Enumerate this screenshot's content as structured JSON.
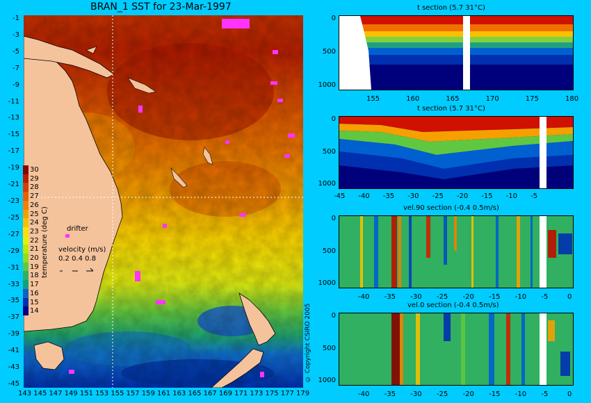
{
  "map": {
    "title": "BRAN_1 SST for 23-Mar-1997",
    "lat_labels": [
      "-1",
      "-3",
      "-5",
      "-7",
      "-9",
      "-11",
      "-13",
      "-15",
      "-17",
      "-19",
      "-21",
      "-23",
      "-25",
      "-27",
      "-29",
      "-31",
      "-33",
      "-35",
      "-37",
      "-39",
      "-41",
      "-43",
      "-45"
    ],
    "lon_labels": [
      "143",
      "145",
      "147",
      "149",
      "151",
      "153",
      "155",
      "157",
      "159",
      "161",
      "163",
      "165",
      "167",
      "169",
      "171",
      "173",
      "175",
      "177",
      "179"
    ],
    "colorbar_label": "temperature (deg C)",
    "colorbar_ticks": [
      "30",
      "29",
      "28",
      "27",
      "26",
      "25",
      "24",
      "23",
      "22",
      "21",
      "20",
      "19",
      "18",
      "17",
      "16",
      "15",
      "14"
    ],
    "colorbar_colors": [
      "#8b0000",
      "#b22000",
      "#d44000",
      "#e86000",
      "#f08000",
      "#f5a000",
      "#f8c000",
      "#ffe000",
      "#e8f000",
      "#c0e800",
      "#90dc20",
      "#60c840",
      "#30b060",
      "#10a080",
      "#1060c0",
      "#0030b0",
      "#000080"
    ],
    "drifter_label": "drifter",
    "velocity_label": "velocity (m/s)",
    "velocity_values": "0.2 0.4 0.8",
    "copyright": "© Copyright CSIRO 2005",
    "colors": {
      "land": "#f4c39c",
      "drifter": "#ff33ff",
      "background": "#00ccff"
    }
  },
  "sections": [
    {
      "title": "t section (5.7     31°C)",
      "x_ticks": [
        "155",
        "160",
        "165",
        "170",
        "175",
        "180"
      ],
      "y_ticks": [
        "0",
        "500",
        "1000"
      ]
    },
    {
      "title": "t section (5.7     31°C)",
      "x_ticks": [
        "-45",
        "-40",
        "-35",
        "-30",
        "-25",
        "-20",
        "-15",
        "-10",
        "-5"
      ],
      "y_ticks": [
        "0",
        "500",
        "1000"
      ]
    },
    {
      "title": "vel.90 section (-0.4      0.5m/s)",
      "x_ticks": [
        "-40",
        "-35",
        "-30",
        "-25",
        "-20",
        "-15",
        "-10",
        "-5",
        "0"
      ],
      "y_ticks": [
        "0",
        "500",
        "1000"
      ]
    },
    {
      "title": "vel.0 section (-0.4      0.5m/s)",
      "x_ticks": [
        "-40",
        "-35",
        "-30",
        "-25",
        "-20",
        "-15",
        "-10",
        "-5",
        "0"
      ],
      "y_ticks": [
        "0",
        "500",
        "1000"
      ]
    }
  ]
}
